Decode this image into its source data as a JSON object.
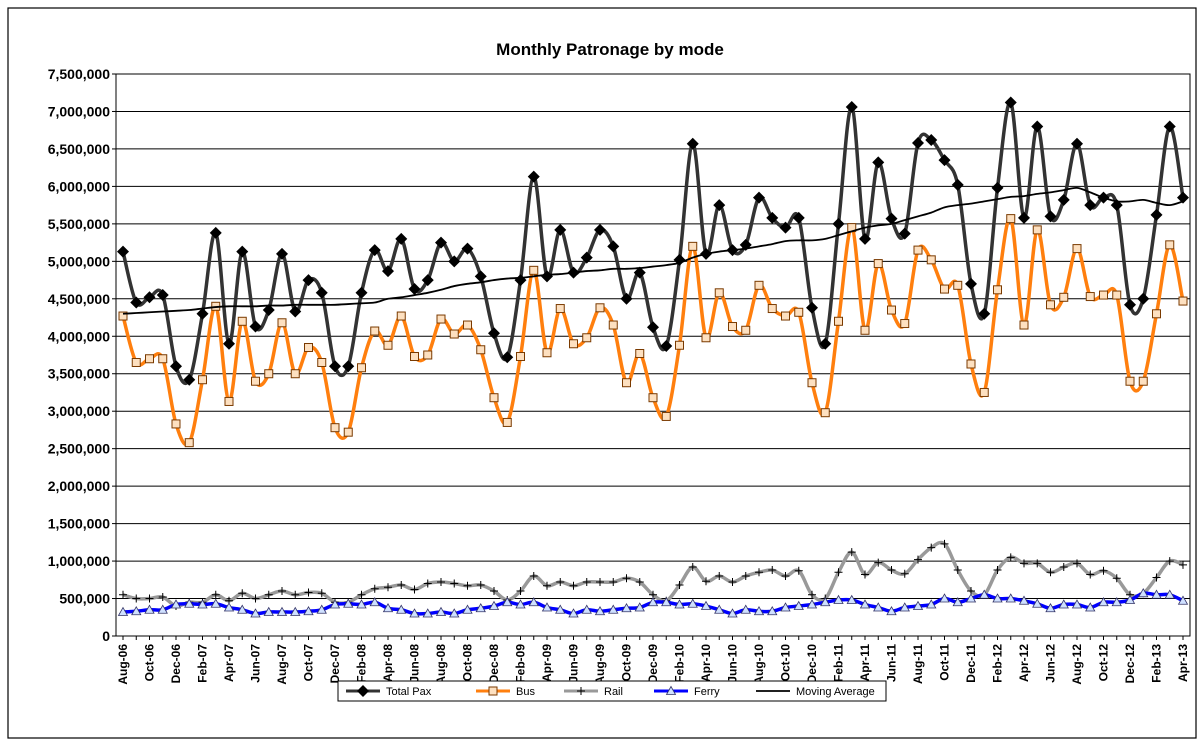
{
  "chart_data": {
    "type": "line",
    "title": "Monthly Patronage by mode",
    "categories": [
      "Aug-06",
      null,
      "Oct-06",
      null,
      "Dec-06",
      null,
      "Feb-07",
      null,
      "Apr-07",
      null,
      "Jun-07",
      null,
      "Aug-07",
      null,
      "Oct-07",
      null,
      "Dec-07",
      null,
      "Feb-08",
      null,
      "Apr-08",
      null,
      "Jun-08",
      null,
      "Aug-08",
      null,
      "Oct-08",
      null,
      "Dec-08",
      null,
      "Feb-09",
      null,
      "Apr-09",
      null,
      "Jun-09",
      null,
      "Aug-09",
      null,
      "Oct-09",
      null,
      "Dec-09",
      null,
      "Feb-10",
      null,
      "Apr-10",
      null,
      "Jun-10",
      null,
      "Aug-10",
      null,
      "Oct-10",
      null,
      "Dec-10",
      null,
      "Feb-11",
      null,
      "Apr-11",
      null,
      "Jun-11",
      null,
      "Aug-11",
      null,
      "Oct-11",
      null,
      "Dec-11",
      null,
      "Feb-12",
      null,
      "Apr-12",
      null,
      "Jun-12",
      null,
      "Aug-12",
      null,
      "Oct-12",
      null,
      "Dec-12",
      null,
      "Feb-13",
      null,
      "Apr-13"
    ],
    "series": [
      {
        "name": "Total Pax",
        "color": "#333333",
        "marker": "diamond",
        "marker_color": "#000000",
        "values": [
          5130000,
          4450000,
          4520000,
          4550000,
          3600000,
          3420000,
          4300000,
          5380000,
          3900000,
          5130000,
          4130000,
          4350000,
          5100000,
          4330000,
          4750000,
          4580000,
          3600000,
          3600000,
          4580000,
          5150000,
          4870000,
          5300000,
          4630000,
          4750000,
          5250000,
          5000000,
          5170000,
          4800000,
          4040000,
          3720000,
          4750000,
          6130000,
          4800000,
          5420000,
          4850000,
          5050000,
          5420000,
          5200000,
          4500000,
          4850000,
          4120000,
          3870000,
          5020000,
          6570000,
          5100000,
          5750000,
          5150000,
          5220000,
          5850000,
          5580000,
          5450000,
          5580000,
          4380000,
          3900000,
          5500000,
          7060000,
          5300000,
          6320000,
          5570000,
          5370000,
          6580000,
          6620000,
          6350000,
          6020000,
          4700000,
          4300000,
          5980000,
          7120000,
          5580000,
          6800000,
          5600000,
          5820000,
          6570000,
          5750000,
          5850000,
          5750000,
          4420000,
          4500000,
          5620000,
          6800000,
          5850000
        ]
      },
      {
        "name": "Bus",
        "color": "#ff7f0e",
        "marker": "square",
        "marker_color": "#7a3a00",
        "values": [
          4270000,
          3650000,
          3700000,
          3700000,
          2830000,
          2580000,
          3420000,
          4400000,
          3130000,
          4200000,
          3400000,
          3500000,
          4180000,
          3500000,
          3850000,
          3650000,
          2780000,
          2720000,
          3580000,
          4070000,
          3880000,
          4270000,
          3730000,
          3750000,
          4230000,
          4030000,
          4150000,
          3820000,
          3180000,
          2850000,
          3730000,
          4880000,
          3780000,
          4370000,
          3900000,
          3980000,
          4380000,
          4150000,
          3380000,
          3770000,
          3180000,
          2930000,
          3880000,
          5200000,
          3980000,
          4580000,
          4130000,
          4080000,
          4680000,
          4370000,
          4270000,
          4320000,
          3380000,
          2980000,
          4200000,
          5450000,
          4080000,
          4970000,
          4350000,
          4170000,
          5150000,
          5020000,
          4630000,
          4680000,
          3630000,
          3250000,
          4620000,
          5570000,
          4150000,
          5420000,
          4420000,
          4520000,
          5170000,
          4530000,
          4550000,
          4550000,
          3400000,
          3400000,
          4300000,
          5220000,
          4470000
        ]
      },
      {
        "name": "Rail",
        "color": "#999999",
        "marker": "plus",
        "marker_color": "#000000",
        "values": [
          550000,
          500000,
          500000,
          520000,
          400000,
          450000,
          450000,
          550000,
          470000,
          570000,
          500000,
          550000,
          600000,
          550000,
          580000,
          570000,
          450000,
          450000,
          550000,
          630000,
          650000,
          680000,
          620000,
          700000,
          720000,
          700000,
          670000,
          680000,
          600000,
          480000,
          600000,
          800000,
          670000,
          720000,
          670000,
          720000,
          720000,
          720000,
          770000,
          720000,
          550000,
          470000,
          680000,
          920000,
          730000,
          800000,
          720000,
          800000,
          850000,
          880000,
          800000,
          870000,
          550000,
          500000,
          850000,
          1120000,
          820000,
          980000,
          880000,
          830000,
          1020000,
          1180000,
          1230000,
          880000,
          600000,
          550000,
          880000,
          1050000,
          970000,
          970000,
          850000,
          920000,
          970000,
          820000,
          870000,
          770000,
          550000,
          570000,
          780000,
          1000000,
          950000
        ]
      },
      {
        "name": "Ferry",
        "color": "#0000ff",
        "marker": "triangle",
        "marker_color": "#333366",
        "values": [
          320000,
          330000,
          350000,
          350000,
          420000,
          430000,
          420000,
          430000,
          380000,
          350000,
          300000,
          320000,
          320000,
          320000,
          330000,
          350000,
          420000,
          430000,
          420000,
          450000,
          370000,
          350000,
          300000,
          300000,
          320000,
          300000,
          350000,
          370000,
          400000,
          450000,
          420000,
          450000,
          380000,
          350000,
          300000,
          350000,
          330000,
          350000,
          370000,
          380000,
          450000,
          450000,
          420000,
          430000,
          400000,
          350000,
          300000,
          350000,
          330000,
          330000,
          380000,
          400000,
          420000,
          450000,
          480000,
          480000,
          420000,
          380000,
          330000,
          380000,
          400000,
          420000,
          500000,
          450000,
          500000,
          550000,
          500000,
          500000,
          470000,
          430000,
          370000,
          420000,
          420000,
          380000,
          450000,
          450000,
          480000,
          570000,
          550000,
          550000,
          470000
        ]
      },
      {
        "name": "Moving Average",
        "color": "#000000",
        "marker": "none",
        "values": [
          4300000,
          4310000,
          4320000,
          4330000,
          4340000,
          4350000,
          4370000,
          4390000,
          4400000,
          4400000,
          4400000,
          4410000,
          4410000,
          4420000,
          4420000,
          4420000,
          4420000,
          4430000,
          4440000,
          4450000,
          4500000,
          4520000,
          4550000,
          4580000,
          4620000,
          4670000,
          4700000,
          4720000,
          4750000,
          4770000,
          4780000,
          4800000,
          4820000,
          4830000,
          4850000,
          4870000,
          4880000,
          4900000,
          4900000,
          4910000,
          4930000,
          4950000,
          4980000,
          5050000,
          5100000,
          5130000,
          5150000,
          5170000,
          5200000,
          5230000,
          5270000,
          5280000,
          5280000,
          5300000,
          5350000,
          5400000,
          5450000,
          5480000,
          5500000,
          5550000,
          5600000,
          5650000,
          5720000,
          5750000,
          5770000,
          5800000,
          5830000,
          5860000,
          5870000,
          5900000,
          5920000,
          5950000,
          5980000,
          5920000,
          5850000,
          5800000,
          5800000,
          5820000,
          5780000,
          5750000,
          5800000
        ]
      }
    ],
    "ylim": [
      0,
      7500000
    ],
    "yticks": [
      0,
      {
        "value": 500000,
        "label": "500,000"
      },
      {
        "value": 1000000,
        "label": "1,000,000"
      },
      {
        "value": 1500000,
        "label": "1,500,000"
      },
      {
        "value": 2000000,
        "label": "2,000,000"
      },
      {
        "value": 2500000,
        "label": "2,500,000"
      },
      {
        "value": 3000000,
        "label": "3,000,000"
      },
      {
        "value": 3500000,
        "label": "3,500,000"
      },
      {
        "value": 4000000,
        "label": "4,000,000"
      },
      {
        "value": 4500000,
        "label": "4,500,000"
      },
      {
        "value": 5000000,
        "label": "5,000,000"
      },
      {
        "value": 5500000,
        "label": "5,500,000"
      },
      {
        "value": 6000000,
        "label": "6,000,000"
      },
      {
        "value": 6500000,
        "label": "6,500,000"
      },
      {
        "value": 7000000,
        "label": "7,000,000"
      },
      {
        "value": 7500000,
        "label": "7,500,000"
      }
    ],
    "grid": true,
    "legend": "bottom"
  }
}
